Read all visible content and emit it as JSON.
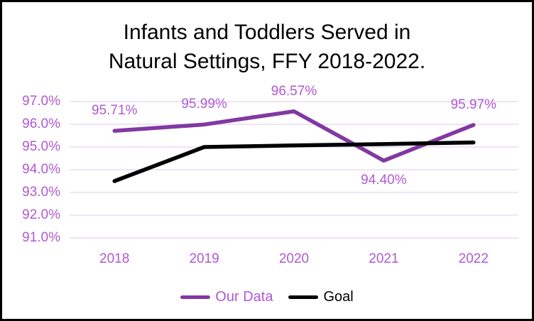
{
  "title": {
    "line1": "Infants and Toddlers Served in",
    "line2": "Natural Settings, FFY 2018-2022."
  },
  "colors": {
    "accent_purple": "#8238A2",
    "text_purple": "#B158D2",
    "gridline": "#EADBF3",
    "goal_black": "#000000",
    "border": "#000000",
    "background": "#FFFFFF"
  },
  "chart_data": {
    "type": "line",
    "title": "Infants and Toddlers Served in Natural Settings, FFY 2018-2022.",
    "categories": [
      "2018",
      "2019",
      "2020",
      "2021",
      "2022"
    ],
    "series": [
      {
        "name": "Our Data",
        "color_key": "accent_purple",
        "values": [
          95.71,
          95.99,
          96.57,
          94.4,
          95.97
        ],
        "data_labels": [
          {
            "text": "95.71%",
            "placement": "above"
          },
          {
            "text": "95.99%",
            "placement": "above"
          },
          {
            "text": "96.57%",
            "placement": "above"
          },
          {
            "text": "94.40%",
            "placement": "below"
          },
          {
            "text": "95.97%",
            "placement": "above"
          }
        ]
      },
      {
        "name": "Goal",
        "color_key": "goal_black",
        "values": [
          93.5,
          95.0,
          95.07,
          95.13,
          95.2
        ],
        "data_labels": null
      }
    ],
    "y_axis": {
      "ticks": [
        "97.0%",
        "96.0%",
        "95.0%",
        "94.0%",
        "93.0%",
        "92.0%",
        "91.0%"
      ],
      "tick_values": [
        97,
        96,
        95,
        94,
        93,
        92,
        91
      ],
      "min": 91,
      "max": 97
    },
    "xlabel": "",
    "ylabel": "",
    "grid": "horizontal",
    "legend_position": "bottom"
  },
  "legend": {
    "items": [
      {
        "label": "Our Data",
        "swatch_color_key": "accent_purple",
        "label_color_key": "text_purple"
      },
      {
        "label": "Goal",
        "swatch_color_key": "goal_black",
        "label_color_key": "goal_black"
      }
    ]
  }
}
